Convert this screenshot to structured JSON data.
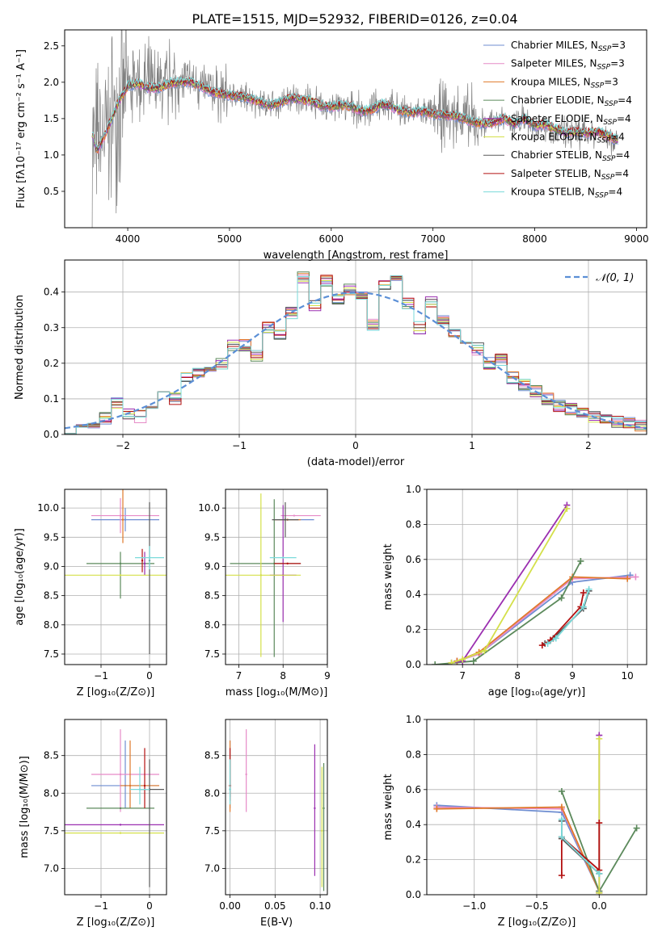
{
  "figure_title": "PLATE=1515, MJD=52932, FIBERID=0126, z=0.04",
  "colors": {
    "Chabrier MILES": "#6f8ed1",
    "Salpeter MILES": "#e68bc7",
    "Kroupa MILES": "#e0792a",
    "Chabrier ELODIE": "#5c8a5c",
    "Salpeter ELODIE": "#9b2fb0",
    "Kroupa ELODIE": "#d4e04a",
    "Chabrier STELIB": "#5a5a5a",
    "Salpeter STELIB": "#b31212",
    "Kroupa STELIB": "#7adada",
    "data_gray": "#808080",
    "normal_curve": "#5b8fd6",
    "grid": "#b0b0b0"
  },
  "chart_data": [
    {
      "id": "spectrum",
      "type": "line",
      "title": "PLATE=1515, MJD=52932, FIBERID=0126, z=0.04",
      "xlabel": "wavelength [Angstrom, rest frame]",
      "ylabel": "Flux [fλ10⁻¹⁷ erg cm⁻² s⁻¹ A⁻¹]",
      "xlim": [
        3380,
        9100
      ],
      "ylim": [
        0.0,
        2.72
      ],
      "xticks": [
        4000,
        5000,
        6000,
        7000,
        8000,
        9000
      ],
      "yticks": [
        0.5,
        1.0,
        1.5,
        2.0,
        2.5
      ],
      "grid": false,
      "legend_position": "top-right",
      "legend": [
        "Chabrier MILES, N_SSP=3",
        "Salpeter MILES, N_SSP=3",
        "Kroupa MILES, N_SSP=3",
        "Chabrier ELODIE, N_SSP=4",
        "Salpeter ELODIE, N_SSP=4",
        "Kroupa ELODIE, N_SSP=4",
        "Chabrier STELIB, N_SSP=4",
        "Salpeter STELIB, N_SSP=4",
        "Kroupa STELIB, N_SSP=4"
      ],
      "model_continuum": {
        "x": [
          3650,
          3700,
          3800,
          3900,
          4000,
          4100,
          4200,
          4300,
          4400,
          4500,
          4600,
          4700,
          4800,
          4900,
          5000,
          5100,
          5200,
          5300,
          5400,
          5500,
          5600,
          5700,
          5800,
          5900,
          6000,
          6100,
          6200,
          6300,
          6400,
          6500,
          6600,
          6700,
          6800,
          6900,
          7000,
          7100,
          7200,
          7300,
          7400,
          7500,
          7600,
          7700,
          7800,
          7900,
          8000,
          8100,
          8200,
          8300,
          8400,
          8500,
          8600,
          8700,
          8800
        ],
        "y": [
          1.3,
          1.05,
          1.35,
          1.7,
          1.95,
          1.98,
          1.92,
          1.92,
          1.98,
          2.0,
          2.01,
          1.96,
          1.88,
          1.84,
          1.82,
          1.8,
          1.78,
          1.72,
          1.68,
          1.72,
          1.78,
          1.76,
          1.74,
          1.68,
          1.66,
          1.68,
          1.66,
          1.6,
          1.62,
          1.7,
          1.66,
          1.6,
          1.58,
          1.6,
          1.56,
          1.55,
          1.54,
          1.5,
          1.45,
          1.42,
          1.45,
          1.5,
          1.42,
          1.5,
          1.4,
          1.42,
          1.36,
          1.3,
          1.32,
          1.3,
          1.32,
          1.28,
          1.2
        ]
      }
    },
    {
      "id": "residuals",
      "type": "histogram",
      "xlabel": "(data-model)/error",
      "ylabel": "Normed distribution",
      "xlim": [
        -2.5,
        2.5
      ],
      "ylim": [
        0.0,
        0.49
      ],
      "xticks": [
        -2,
        -1,
        0,
        1,
        2
      ],
      "yticks": [
        0.0,
        0.1,
        0.2,
        0.3,
        0.4
      ],
      "grid": true,
      "legend_position": "top-right",
      "legend": [
        "𝒩(0, 1)"
      ],
      "bins": [
        -2.5,
        -2.4,
        -2.3,
        -2.2,
        -2.1,
        -2.0,
        -1.9,
        -1.8,
        -1.7,
        -1.6,
        -1.5,
        -1.4,
        -1.3,
        -1.2,
        -1.1,
        -1.0,
        -0.9,
        -0.8,
        -0.7,
        -0.6,
        -0.5,
        -0.4,
        -0.3,
        -0.2,
        -0.1,
        0.0,
        0.1,
        0.2,
        0.3,
        0.4,
        0.5,
        0.6,
        0.7,
        0.8,
        0.9,
        1.0,
        1.1,
        1.2,
        1.3,
        1.4,
        1.5,
        1.6,
        1.7,
        1.8,
        1.9,
        2.0,
        2.1,
        2.2,
        2.3,
        2.4,
        2.5
      ],
      "values": [
        0.02,
        0.03,
        0.025,
        0.045,
        0.09,
        0.06,
        0.05,
        0.08,
        0.12,
        0.1,
        0.16,
        0.17,
        0.19,
        0.2,
        0.25,
        0.25,
        0.22,
        0.3,
        0.28,
        0.34,
        0.44,
        0.36,
        0.43,
        0.38,
        0.41,
        0.39,
        0.31,
        0.42,
        0.43,
        0.37,
        0.3,
        0.37,
        0.32,
        0.29,
        0.27,
        0.24,
        0.2,
        0.21,
        0.16,
        0.14,
        0.12,
        0.1,
        0.08,
        0.07,
        0.06,
        0.05,
        0.04,
        0.035,
        0.03,
        0.025
      ]
    },
    {
      "id": "age_vs_Z",
      "type": "scatter",
      "xlabel": "Z [log₁₀(Z/Z⊙)]",
      "ylabel": "age  [log₁₀(age/yr)]",
      "xlim": [
        -1.75,
        0.35
      ],
      "ylim": [
        7.32,
        10.32
      ],
      "xticks": [
        -1,
        0
      ],
      "yticks": [
        7.5,
        8.0,
        8.5,
        9.0,
        9.5,
        10.0
      ],
      "grid": true,
      "points": [
        {
          "model": "Chabrier MILES",
          "x": -0.5,
          "y": 9.8,
          "xerr": [
            0.7,
            0.7
          ],
          "yerr": [
            0.2,
            0.2
          ]
        },
        {
          "model": "Salpeter MILES",
          "x": -0.6,
          "y": 9.87,
          "xerr": [
            0.6,
            0.8
          ],
          "yerr": [
            0.3,
            0.3
          ]
        },
        {
          "model": "Kroupa MILES",
          "x": -0.55,
          "y": 9.8,
          "yerr": [
            0.4,
            0.9
          ]
        },
        {
          "model": "Chabrier ELODIE",
          "x": -0.6,
          "y": 9.05,
          "xerr": [
            0.7,
            0.7
          ],
          "yerr": [
            0.6,
            0.2
          ]
        },
        {
          "model": "Salpeter ELODIE",
          "x": -0.1,
          "y": 9.05,
          "yerr": [
            0.2,
            0.2
          ]
        },
        {
          "model": "Kroupa ELODIE",
          "x": -0.6,
          "y": 8.85,
          "xerr": [
            1.2,
            1.2
          ]
        },
        {
          "model": "Chabrier STELIB",
          "x": 0.0,
          "y": 9.1,
          "yerr": [
            1.6,
            1.0
          ]
        },
        {
          "model": "Salpeter STELIB",
          "x": -0.15,
          "y": 9.1,
          "yerr": [
            0.2,
            0.2
          ]
        },
        {
          "model": "Kroupa STELIB",
          "x": 0.0,
          "y": 9.15,
          "xerr": [
            0.3,
            0.3
          ],
          "yerr": [
            0.2,
            0.2
          ]
        }
      ]
    },
    {
      "id": "age_vs_mass",
      "type": "scatter",
      "xlabel": "mass [log₁₀(M/M⊙)]",
      "ylabel": "",
      "xlim": [
        6.7,
        9.0
      ],
      "ylim": [
        7.32,
        10.32
      ],
      "xticks": [
        7,
        8,
        9
      ],
      "yticks": [
        7.5,
        8.0,
        8.5,
        9.0,
        9.5,
        10.0
      ],
      "grid": true,
      "points": [
        {
          "model": "Chabrier MILES",
          "x": 8.1,
          "y": 9.8,
          "xerr": [
            0.3,
            0.6
          ]
        },
        {
          "model": "Salpeter MILES",
          "x": 8.25,
          "y": 9.87,
          "xerr": [
            0.3,
            0.6
          ]
        },
        {
          "model": "Kroupa MILES",
          "x": 8.1,
          "y": 9.8,
          "xerr": [
            0.3,
            0.3
          ]
        },
        {
          "model": "Chabrier ELODIE",
          "x": 7.8,
          "y": 9.05,
          "xerr": [
            1.0,
            0.6
          ],
          "yerr": [
            1.6,
            1.1
          ]
        },
        {
          "model": "Salpeter ELODIE",
          "x": 8.0,
          "y": 8.85,
          "xerr": [
            0.3,
            0.3
          ],
          "yerr": [
            0.8,
            1.2
          ]
        },
        {
          "model": "Kroupa ELODIE",
          "x": 7.5,
          "y": 8.85,
          "xerr": [
            0.9,
            0.9
          ],
          "yerr": [
            1.4,
            1.4
          ]
        },
        {
          "model": "Chabrier STELIB",
          "x": 8.05,
          "y": 9.8,
          "xerr": [
            0.3,
            0.3
          ],
          "yerr": [
            0.3,
            0.3
          ]
        },
        {
          "model": "Salpeter STELIB",
          "x": 8.1,
          "y": 9.05,
          "xerr": [
            0.3,
            0.3
          ]
        },
        {
          "model": "Kroupa STELIB",
          "x": 8.0,
          "y": 9.15,
          "xerr": [
            0.3,
            0.3
          ]
        }
      ]
    },
    {
      "id": "weight_vs_age",
      "type": "line",
      "xlabel": "age  [log₁₀(age/yr)]",
      "ylabel": "mass weight",
      "xlim": [
        6.35,
        10.35
      ],
      "ylim": [
        0.0,
        1.0
      ],
      "xticks": [
        7,
        8,
        9,
        10
      ],
      "yticks": [
        0.0,
        0.2,
        0.4,
        0.6,
        0.8,
        1.0
      ],
      "grid": true,
      "series": [
        {
          "name": "Chabrier MILES",
          "x": [
            6.9,
            7.3,
            9.0,
            10.05
          ],
          "y": [
            0.02,
            0.06,
            0.47,
            0.51
          ]
        },
        {
          "name": "Salpeter MILES",
          "x": [
            6.9,
            7.3,
            9.0,
            10.15
          ],
          "y": [
            0.02,
            0.06,
            0.49,
            0.5
          ]
        },
        {
          "name": "Kroupa MILES",
          "x": [
            6.9,
            7.3,
            9.0,
            10.0
          ],
          "y": [
            0.02,
            0.07,
            0.5,
            0.49
          ]
        },
        {
          "name": "Chabrier ELODIE",
          "x": [
            6.5,
            7.2,
            8.8,
            9.15
          ],
          "y": [
            0.0,
            0.02,
            0.38,
            0.59
          ]
        },
        {
          "name": "Salpeter ELODIE",
          "x": [
            6.8,
            7.0,
            8.9
          ],
          "y": [
            0.01,
            0.02,
            0.91
          ]
        },
        {
          "name": "Kroupa ELODIE",
          "x": [
            6.8,
            7.0,
            7.4,
            8.9
          ],
          "y": [
            0.01,
            0.03,
            0.08,
            0.89
          ]
        },
        {
          "name": "Chabrier STELIB",
          "x": [
            8.5,
            8.65,
            9.2,
            9.3
          ],
          "y": [
            0.12,
            0.15,
            0.32,
            0.42
          ]
        },
        {
          "name": "Salpeter STELIB",
          "x": [
            8.45,
            8.6,
            9.15,
            9.2
          ],
          "y": [
            0.11,
            0.14,
            0.33,
            0.41
          ]
        },
        {
          "name": "Kroupa STELIB",
          "x": [
            8.55,
            8.7,
            9.2,
            9.3
          ],
          "y": [
            0.12,
            0.15,
            0.33,
            0.43
          ]
        }
      ]
    },
    {
      "id": "mass_vs_Z",
      "type": "scatter",
      "xlabel": "Z [log₁₀(Z/Z⊙)]",
      "ylabel": "mass [log₁₀(M/M⊙)]",
      "xlim": [
        -1.75,
        0.35
      ],
      "ylim": [
        6.65,
        8.98
      ],
      "xticks": [
        -1,
        0
      ],
      "yticks": [
        7.0,
        7.5,
        8.0,
        8.5
      ],
      "grid": true,
      "points": [
        {
          "model": "Chabrier MILES",
          "x": -0.5,
          "y": 8.1,
          "xerr": [
            0.7,
            0.7
          ],
          "yerr": [
            0.3,
            0.6
          ]
        },
        {
          "model": "Salpeter MILES",
          "x": -0.6,
          "y": 8.25,
          "xerr": [
            0.6,
            0.8
          ],
          "yerr": [
            0.5,
            0.6
          ]
        },
        {
          "model": "Kroupa MILES",
          "x": -0.4,
          "y": 8.1,
          "xerr": [
            0.2,
            0.6
          ],
          "yerr": [
            0.3,
            0.6
          ]
        },
        {
          "model": "Chabrier ELODIE",
          "x": -0.6,
          "y": 7.8,
          "xerr": [
            0.7,
            0.7
          ]
        },
        {
          "model": "Salpeter ELODIE",
          "x": -0.6,
          "y": 7.58,
          "xerr": [
            1.2,
            0.9
          ]
        },
        {
          "model": "Kroupa ELODIE",
          "x": -0.6,
          "y": 7.47,
          "xerr": [
            1.2,
            0.9
          ]
        },
        {
          "model": "Chabrier STELIB",
          "x": 0.0,
          "y": 8.05,
          "xerr": [
            0.2,
            0.3
          ],
          "yerr": [
            1.3,
            0.4
          ]
        },
        {
          "model": "Salpeter STELIB",
          "x": -0.1,
          "y": 8.1,
          "yerr": [
            0.3,
            0.5
          ]
        },
        {
          "model": "Kroupa STELIB",
          "x": -0.2,
          "y": 8.05,
          "xerr": [
            0.2,
            0.2
          ],
          "yerr": [
            0.2,
            0.3
          ]
        }
      ]
    },
    {
      "id": "mass_vs_ebv",
      "type": "scatter",
      "xlabel": "E(B-V)",
      "ylabel": "",
      "xlim": [
        -0.005,
        0.108
      ],
      "ylim": [
        6.65,
        8.98
      ],
      "xticks": [
        0.0,
        0.05,
        0.1
      ],
      "xticklabels": [
        "0.00",
        "0.05",
        "0.10"
      ],
      "yticks": [
        7.0,
        7.5,
        8.0,
        8.5
      ],
      "grid": true,
      "points": [
        {
          "model": "Chabrier MILES",
          "x": 0.0,
          "y": 8.1,
          "yerr": [
            0.3,
            0.6
          ]
        },
        {
          "model": "Salpeter MILES",
          "x": 0.018,
          "y": 8.25,
          "yerr": [
            0.5,
            0.6
          ]
        },
        {
          "model": "Kroupa MILES",
          "x": 0.0,
          "y": 8.1,
          "yerr": [
            0.35,
            0.6
          ]
        },
        {
          "model": "Chabrier ELODIE",
          "x": 0.104,
          "y": 7.8,
          "yerr": [
            1.1,
            0.6
          ]
        },
        {
          "model": "Salpeter ELODIE",
          "x": 0.094,
          "y": 7.8,
          "yerr": [
            0.9,
            0.85
          ]
        },
        {
          "model": "Kroupa ELODIE",
          "x": 0.102,
          "y": 7.5,
          "yerr": [
            0.75,
            0.85
          ]
        },
        {
          "model": "Chabrier STELIB",
          "x": 0.0,
          "y": 8.05,
          "yerr": [
            0.1,
            0.4
          ]
        },
        {
          "model": "Salpeter STELIB",
          "x": 0.0,
          "y": 8.1,
          "yerr": [
            0.2,
            0.5
          ]
        },
        {
          "model": "Kroupa STELIB",
          "x": 0.0,
          "y": 8.05,
          "yerr": [
            0.2,
            0.4
          ]
        }
      ]
    },
    {
      "id": "weight_vs_Z",
      "type": "line",
      "xlabel": "Z [log₁₀(Z/Z⊙)]",
      "ylabel": "mass weight",
      "xlim": [
        -1.38,
        0.38
      ],
      "ylim": [
        0.0,
        1.0
      ],
      "xticks": [
        -1.0,
        -0.5,
        0.0
      ],
      "xticklabels": [
        "−1.0",
        "−0.5",
        "0.0"
      ],
      "yticks": [
        0.0,
        0.2,
        0.4,
        0.6,
        0.8,
        1.0
      ],
      "grid": true,
      "series": [
        {
          "name": "Chabrier MILES",
          "x": [
            -1.3,
            -0.3,
            0.0
          ],
          "y": [
            0.51,
            0.47,
            0.02
          ]
        },
        {
          "name": "Salpeter MILES",
          "x": [
            -1.3,
            -0.3,
            0.0
          ],
          "y": [
            0.5,
            0.49,
            0.02
          ]
        },
        {
          "name": "Kroupa MILES",
          "x": [
            -1.3,
            -0.3,
            0.0
          ],
          "y": [
            0.49,
            0.5,
            0.02
          ]
        },
        {
          "name": "Chabrier ELODIE",
          "x": [
            -0.3,
            0.0,
            0.3
          ],
          "y": [
            0.59,
            0.02,
            0.38
          ]
        },
        {
          "name": "Salpeter ELODIE",
          "x": [
            0.0,
            0.0
          ],
          "y": [
            0.91,
            0.01
          ]
        },
        {
          "name": "Kroupa ELODIE",
          "x": [
            0.0,
            0.0
          ],
          "y": [
            0.89,
            0.01
          ]
        },
        {
          "name": "Chabrier STELIB",
          "x": [
            -0.3,
            -0.3,
            0.0
          ],
          "y": [
            0.42,
            0.32,
            0.12
          ]
        },
        {
          "name": "Salpeter STELIB",
          "x": [
            -0.3,
            -0.3,
            0.0,
            0.0
          ],
          "y": [
            0.11,
            0.33,
            0.14,
            0.41
          ]
        },
        {
          "name": "Kroupa STELIB",
          "x": [
            -0.3,
            -0.3,
            0.0
          ],
          "y": [
            0.43,
            0.33,
            0.12
          ]
        }
      ]
    }
  ]
}
